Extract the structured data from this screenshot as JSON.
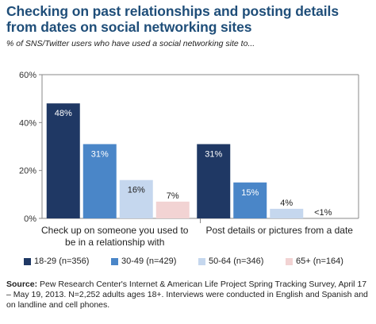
{
  "title": "Checking on past relationships and posting details from dates on social networking sites",
  "subtitle": "% of SNS/Twitter users who have used a social networking site to...",
  "source_label": "Source:",
  "source_text": "Pew Research Center's Internet & American Life Project Spring Tracking Survey, April 17 – May 19, 2013. N=2,252 adults ages 18+. Interviews were conducted in English and Spanish and on landline and cell phones.",
  "chart_data": {
    "type": "bar",
    "title": "Checking on past relationships and posting details from dates on social networking sites",
    "subtitle": "% of SNS/Twitter users who have used a social networking site to...",
    "categories": [
      [
        "Check up on someone you used to",
        "be in a relationship with"
      ],
      [
        "Post details or pictures from a date"
      ]
    ],
    "series": [
      {
        "name": "18-29 (n=356)",
        "color": "#1f3864",
        "values": [
          48,
          31
        ],
        "labels": [
          "48%",
          "31%"
        ],
        "label_color": "#ffffff"
      },
      {
        "name": "30-49 (n=429)",
        "color": "#4a86c8",
        "values": [
          31,
          15
        ],
        "labels": [
          "31%",
          "15%"
        ],
        "label_color": "#ffffff"
      },
      {
        "name": "50-64 (n=346)",
        "color": "#c5d7ee",
        "values": [
          16,
          4
        ],
        "labels": [
          "16%",
          "4%"
        ],
        "label_color": "#222222"
      },
      {
        "name": "65+ (n=164)",
        "color": "#f2d3d3",
        "values": [
          7,
          0
        ],
        "labels": [
          "7%",
          "<1%"
        ],
        "label_color": "#222222"
      }
    ],
    "ylim": [
      0,
      60
    ],
    "yticks": [
      0,
      20,
      40,
      60
    ],
    "ytick_labels": [
      "0%",
      "20%",
      "40%",
      "60%"
    ],
    "legend_position": "bottom",
    "grid": false
  }
}
